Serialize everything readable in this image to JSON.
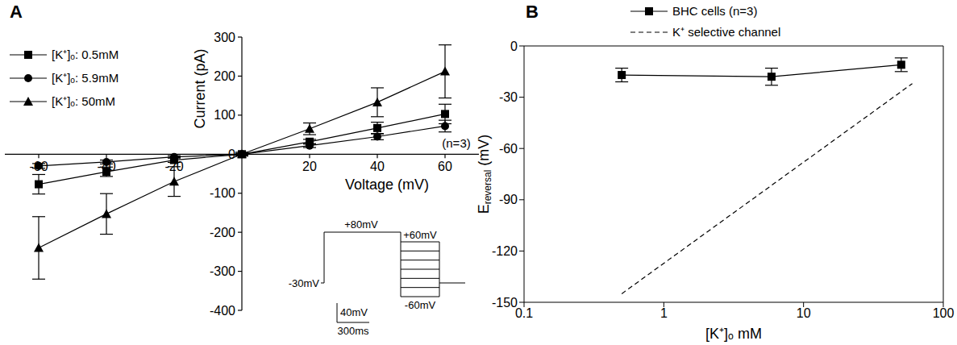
{
  "chart_data": [
    {
      "type": "line",
      "title": "A",
      "xlabel": "Voltage (mV)",
      "ylabel": "Current (pA)",
      "x": [
        -60,
        -40,
        -20,
        0,
        20,
        40,
        60
      ],
      "xlim": [
        -70,
        70
      ],
      "xticks": [
        -60,
        -40,
        -20,
        20,
        40,
        60
      ],
      "ylim": [
        -400,
        300
      ],
      "yticks": [
        -400,
        -300,
        -200,
        -100,
        0,
        100,
        200,
        300
      ],
      "grid": false,
      "legend": "upper left",
      "series": [
        {
          "name": "[K⁺]ₒ: 0.5mM",
          "color": "#000000",
          "marker": "square",
          "line_style": "solid",
          "values": [
            -77,
            -45,
            -15,
            0,
            32,
            67,
            103
          ],
          "errors": [
            25,
            12,
            6,
            2,
            6,
            15,
            25
          ]
        },
        {
          "name": "[K⁺]ₒ: 5.9mM",
          "color": "#000000",
          "marker": "circle",
          "line_style": "solid",
          "values": [
            -30,
            -20,
            -7,
            0,
            22,
            45,
            72
          ],
          "errors": [
            6,
            5,
            3,
            2,
            5,
            8,
            15
          ]
        },
        {
          "name": "[K⁺]ₒ: 50mM",
          "color": "#000000",
          "marker": "triangle",
          "line_style": "solid",
          "values": [
            -240,
            -153,
            -70,
            0,
            65,
            133,
            212
          ],
          "errors": [
            80,
            52,
            38,
            5,
            15,
            37,
            68
          ]
        }
      ],
      "annotations": [
        "(n=3)",
        "+80mV",
        "+60mV",
        "-30mV",
        "-60mV",
        "40mV",
        "300ms"
      ]
    },
    {
      "type": "line",
      "title": "B",
      "xlabel": "[K⁺]ₒ mM",
      "ylabel": "Ereversal (mV)",
      "log": "x",
      "xlim": [
        0.1,
        100
      ],
      "xticks": [
        0.1,
        1,
        10,
        100
      ],
      "ylim": [
        -150,
        0
      ],
      "yticks": [
        -150,
        -120,
        -90,
        -60,
        -30,
        0
      ],
      "grid": false,
      "legend": "upper left",
      "series": [
        {
          "name": "BHC cells (n=3)",
          "color": "#000000",
          "marker": "square",
          "line_style": "solid",
          "x": [
            0.5,
            5.9,
            50
          ],
          "values": [
            -17,
            -18,
            -11
          ],
          "errors": [
            4,
            5,
            4
          ]
        },
        {
          "name": "K⁺ selective channel",
          "color": "#000000",
          "marker": "none",
          "line_style": "dashed",
          "x": [
            0.5,
            60
          ],
          "values": [
            -145,
            -22
          ]
        }
      ]
    }
  ]
}
